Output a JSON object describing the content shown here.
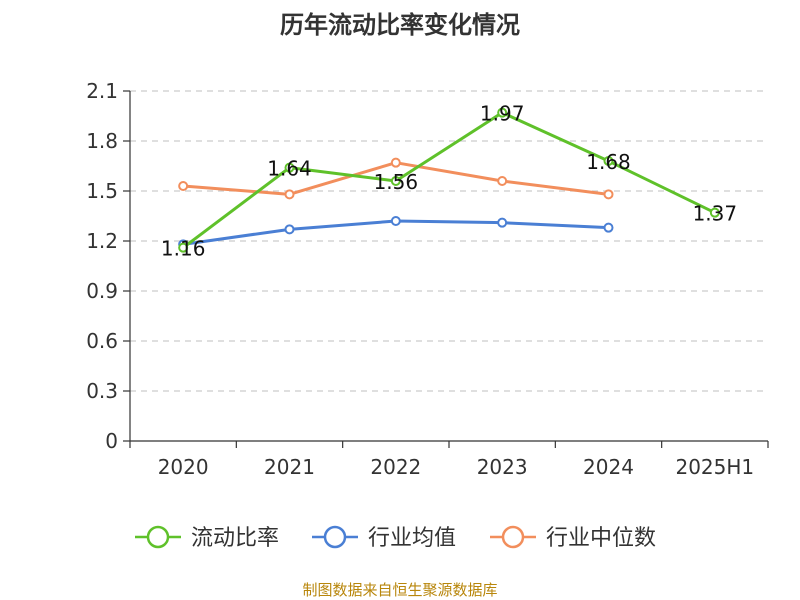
{
  "chart_data": {
    "type": "line",
    "title": "历年流动比率变化情况",
    "categories": [
      "2020",
      "2021",
      "2022",
      "2023",
      "2024",
      "2025H1"
    ],
    "ylim": [
      0,
      2.1
    ],
    "yticks": [
      "0",
      "0.3",
      "0.6",
      "0.9",
      "1.2",
      "1.5",
      "1.8",
      "2.1"
    ],
    "grid": true,
    "legend_position": "bottom",
    "series": [
      {
        "name": "流动比率",
        "color": "#5fc12a",
        "values": [
          1.16,
          1.64,
          1.56,
          1.97,
          1.68,
          1.37
        ],
        "labels": [
          "1.16",
          "1.64",
          "1.56",
          "1.97",
          "1.68",
          "1.37"
        ]
      },
      {
        "name": "行业均值",
        "color": "#4a7fd4",
        "values": [
          1.18,
          1.27,
          1.32,
          1.31,
          1.28,
          null
        ]
      },
      {
        "name": "行业中位数",
        "color": "#f28e5c",
        "values": [
          1.53,
          1.48,
          1.67,
          1.56,
          1.48,
          null
        ]
      }
    ],
    "source": "制图数据来自恒生聚源数据库"
  }
}
